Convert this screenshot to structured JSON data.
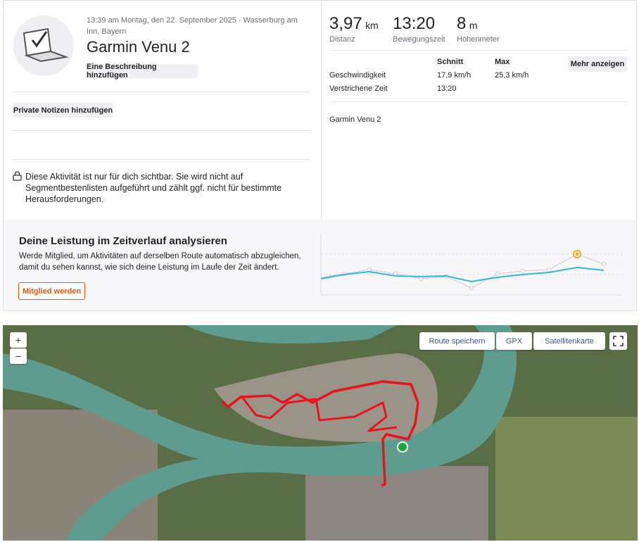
{
  "activity": {
    "meta": "13:39 am Montag, den 22. September 2025 · Wasserburg am Inn, Bayern",
    "title": "Garmin Venu 2",
    "add_description": "Eine Beschreibung hinzufügen",
    "private_notes": "Private Notizen hinzufügen",
    "privacy_note": "Diese Aktivität ist nur für dich sichtbar. Sie wird nicht auf Segmentbestenlisten aufgeführt und zählt ggf. nicht für bestimmte Herausforderungen."
  },
  "stats": {
    "items": [
      {
        "value": "3,97",
        "unit": "km",
        "label": "Distanz"
      },
      {
        "value": "13:20",
        "label": "Bewegungszeit"
      },
      {
        "value": "8",
        "unit": "m",
        "label": "Höhenmeter"
      }
    ],
    "table": {
      "headers": [
        "Schnitt",
        "Max"
      ],
      "rows": [
        [
          "Geschwindigkeit",
          "17,9 km/h",
          "25,3 km/h"
        ],
        [
          "Verstrichene Zeit",
          "13:20"
        ]
      ]
    },
    "more_button": "Mehr anzeigen",
    "device": "Garmin Venu 2"
  },
  "upsell": {
    "title": "Deine Leistung im Zeitverlauf analysieren",
    "text": "Werde Mitglied, um Aktivitäten auf derselben Route automatisch abzugleichen, damit du sehen kannst, wie sich deine Leistung im Laufe der Zeit ändert.",
    "button": "Mitglied werden"
  },
  "map": {
    "zoom_in": "+",
    "zoom_out": "−",
    "save_route": "Route speichern",
    "gpx": "GPX",
    "map_type": "Satellitenkarte"
  }
}
